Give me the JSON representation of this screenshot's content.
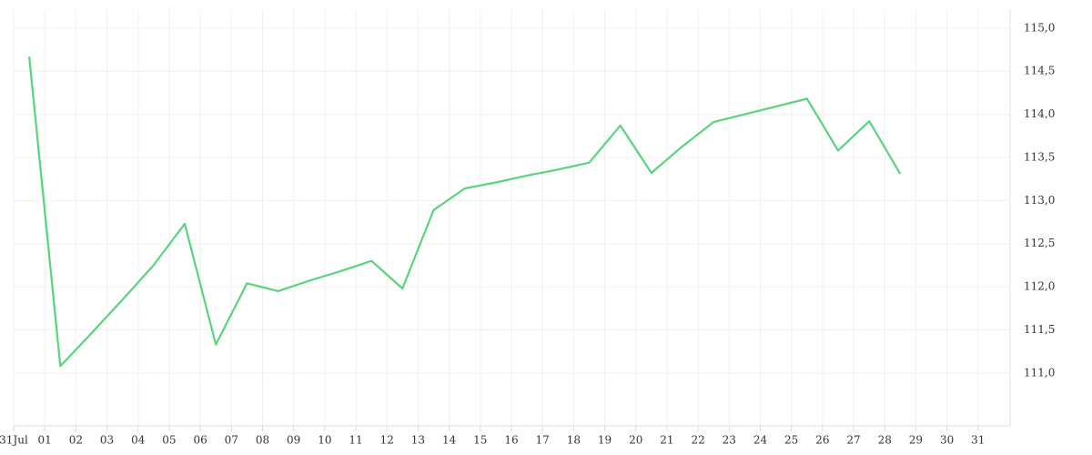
{
  "chart_data": {
    "type": "line",
    "x": [
      0.5,
      1.5,
      2.5,
      3.5,
      4.5,
      5.5,
      6.5,
      7.5,
      8.5,
      9.5,
      10.5,
      11.5,
      12.5,
      13.5,
      14.5,
      15.5,
      16.5,
      17.5,
      18.5,
      19.5,
      20.5,
      21.5,
      22.5,
      23.5,
      24.5,
      25.5,
      26.5,
      27.5,
      28.5
    ],
    "series": [
      {
        "color": "#5ad37f",
        "values": [
          114.67,
          111.08,
          111.46,
          111.85,
          112.25,
          112.73,
          111.33,
          112.04,
          111.95,
          112.07,
          112.18,
          112.3,
          111.98,
          112.89,
          113.14,
          113.21,
          113.29,
          113.36,
          113.44,
          113.87,
          113.32,
          113.63,
          113.91,
          114.0,
          114.09,
          114.18,
          113.58,
          113.92,
          113.31
        ]
      }
    ],
    "xlim": [
      0,
      32
    ],
    "xticks": [
      {
        "value": 0,
        "label": "31Jul"
      },
      {
        "value": 1,
        "label": "01"
      },
      {
        "value": 2,
        "label": "02"
      },
      {
        "value": 3,
        "label": "03"
      },
      {
        "value": 4,
        "label": "04"
      },
      {
        "value": 5,
        "label": "05"
      },
      {
        "value": 6,
        "label": "06"
      },
      {
        "value": 7,
        "label": "07"
      },
      {
        "value": 8,
        "label": "08"
      },
      {
        "value": 9,
        "label": "09"
      },
      {
        "value": 10,
        "label": "10"
      },
      {
        "value": 11,
        "label": "11"
      },
      {
        "value": 12,
        "label": "12"
      },
      {
        "value": 13,
        "label": "13"
      },
      {
        "value": 14,
        "label": "14"
      },
      {
        "value": 15,
        "label": "15"
      },
      {
        "value": 16,
        "label": "16"
      },
      {
        "value": 17,
        "label": "17"
      },
      {
        "value": 18,
        "label": "18"
      },
      {
        "value": 19,
        "label": "19"
      },
      {
        "value": 20,
        "label": "20"
      },
      {
        "value": 21,
        "label": "21"
      },
      {
        "value": 22,
        "label": "22"
      },
      {
        "value": 23,
        "label": "23"
      },
      {
        "value": 24,
        "label": "24"
      },
      {
        "value": 25,
        "label": "25"
      },
      {
        "value": 26,
        "label": "26"
      },
      {
        "value": 27,
        "label": "27"
      },
      {
        "value": 28,
        "label": "28"
      },
      {
        "value": 29,
        "label": "29"
      },
      {
        "value": 30,
        "label": "30"
      },
      {
        "value": 31,
        "label": "31"
      }
    ],
    "ylim": [
      110.45,
      115.22
    ],
    "yticks": [
      {
        "value": 111,
        "label": "111,0"
      },
      {
        "value": 111.5,
        "label": "111,5"
      },
      {
        "value": 112,
        "label": "112,0"
      },
      {
        "value": 112.5,
        "label": "112,5"
      },
      {
        "value": 113,
        "label": "113,0"
      },
      {
        "value": 113.5,
        "label": "113,5"
      },
      {
        "value": 114,
        "label": "114,0"
      },
      {
        "value": 114.5,
        "label": "114,5"
      },
      {
        "value": 115,
        "label": "115,0"
      }
    ],
    "grid": true
  }
}
